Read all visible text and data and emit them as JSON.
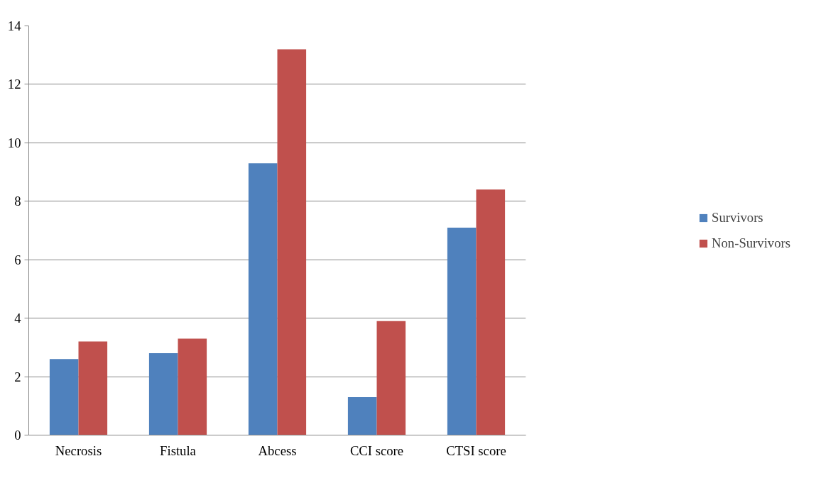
{
  "chart_data": {
    "type": "bar",
    "categories": [
      "Necrosis",
      "Fistula",
      "Abcess",
      "CCI score",
      "CTSI score"
    ],
    "series": [
      {
        "name": "Survivors",
        "color": "#4f81bd",
        "values": [
          2.6,
          2.8,
          9.3,
          1.3,
          7.1
        ]
      },
      {
        "name": "Non-Survivors",
        "color": "#c0504d",
        "values": [
          3.2,
          3.3,
          13.2,
          3.9,
          8.4
        ]
      }
    ],
    "ylim": [
      0,
      14
    ],
    "yticks": [
      0,
      2,
      4,
      6,
      8,
      10,
      12,
      14
    ],
    "grid": "y",
    "legend": "right"
  }
}
